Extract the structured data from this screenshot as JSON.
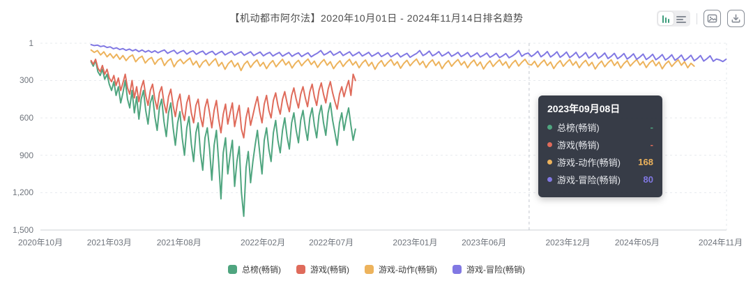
{
  "tooltip": {
    "date": "2023年09月08日",
    "day": 1072,
    "rows": [
      {
        "label": "总榜(畅销)",
        "value": "-",
        "color": "#4fa57f"
      },
      {
        "label": "游戏(畅销)",
        "value": "-",
        "color": "#df6b5b"
      },
      {
        "label": "游戏-动作(畅销)",
        "value": "168",
        "color": "#edb35c"
      },
      {
        "label": "游戏-冒险(畅销)",
        "value": "80",
        "color": "#8178e3"
      }
    ]
  },
  "toolbar": {
    "icons": [
      "bar-chart-toggle-icon",
      "list-view-toggle-icon",
      "export-image-icon",
      "download-icon"
    ],
    "accent_color": "#3e9e7c",
    "icon_color": "#878d96"
  },
  "chart_data": {
    "type": "line",
    "title": "【机动都市阿尔法】2020年10月01日 - 2024年11月14日排名趋势",
    "legend_position": "bottom",
    "grid": "horizontal-dashed",
    "x_axis": {
      "start": "2020年10月01日",
      "end": "2024年11月14日",
      "total_days": 1505,
      "ticks": [
        {
          "label": "2020年10月",
          "day": 0
        },
        {
          "label": "2021年03月",
          "day": 151
        },
        {
          "label": "2021年08月",
          "day": 304
        },
        {
          "label": "2022年02月",
          "day": 488
        },
        {
          "label": "2022年07月",
          "day": 638
        },
        {
          "label": "2023年01月",
          "day": 822
        },
        {
          "label": "2023年06月",
          "day": 973
        },
        {
          "label": "2023年12月",
          "day": 1157
        },
        {
          "label": "2024年05月",
          "day": 1309
        },
        {
          "label": "2024年11月",
          "day": 1492
        }
      ]
    },
    "y_axis": {
      "inverted": true,
      "min": 1,
      "max": 1500,
      "ticks": [
        "1",
        "300",
        "600",
        "900",
        "1,200",
        "1,500"
      ],
      "tick_values": [
        1,
        300,
        600,
        900,
        1200,
        1500
      ]
    },
    "series": [
      {
        "key": "overall-bestseller",
        "name": "总榜(畅销)",
        "color": "#4fa57f",
        "start_day": 111,
        "step_days": 5,
        "values": [
          150,
          185,
          140,
          230,
          260,
          210,
          290,
          250,
          330,
          380,
          310,
          420,
          350,
          480,
          400,
          300,
          450,
          520,
          380,
          560,
          430,
          610,
          450,
          380,
          540,
          650,
          480,
          420,
          590,
          700,
          520,
          450,
          630,
          750,
          560,
          480,
          680,
          820,
          640,
          550,
          760,
          900,
          680,
          590,
          810,
          950,
          720,
          640,
          880,
          1020,
          760,
          680,
          850,
          1100,
          820,
          700,
          950,
          1250,
          880,
          760,
          1050,
          900,
          780,
          1150,
          950,
          830,
          1200,
          1390,
          1000,
          870,
          1120,
          950,
          820,
          700,
          880,
          1050,
          780,
          680,
          850,
          950,
          720,
          620,
          780,
          880,
          700,
          600,
          750,
          850,
          640,
          560,
          700,
          800,
          620,
          540,
          680,
          780,
          600,
          520,
          660,
          760,
          580,
          500,
          640,
          740,
          560,
          480,
          620,
          720,
          820,
          640,
          560,
          700,
          600,
          520,
          660,
          780,
          690
        ]
      },
      {
        "key": "games-bestseller",
        "name": "游戏(畅销)",
        "color": "#df6b5b",
        "start_day": 111,
        "step_days": 5,
        "values": [
          140,
          170,
          130,
          200,
          230,
          180,
          250,
          210,
          280,
          310,
          260,
          340,
          280,
          380,
          320,
          250,
          360,
          410,
          300,
          440,
          350,
          470,
          360,
          300,
          420,
          500,
          380,
          330,
          450,
          530,
          400,
          350,
          480,
          560,
          430,
          370,
          500,
          590,
          470,
          410,
          550,
          620,
          480,
          420,
          560,
          640,
          500,
          450,
          590,
          670,
          520,
          450,
          560,
          680,
          540,
          460,
          610,
          720,
          570,
          490,
          650,
          560,
          480,
          670,
          580,
          500,
          690,
          760,
          600,
          520,
          660,
          580,
          500,
          430,
          550,
          640,
          490,
          420,
          540,
          600,
          460,
          400,
          500,
          570,
          450,
          390,
          480,
          550,
          420,
          360,
          450,
          520,
          410,
          350,
          440,
          510,
          390,
          330,
          430,
          500,
          380,
          320,
          410,
          480,
          370,
          310,
          400,
          470,
          530,
          410,
          350,
          430,
          360,
          300,
          420,
          250,
          300
        ]
      },
      {
        "key": "games-action-bestseller",
        "name": "游戏-动作(畅销)",
        "color": "#edb35c",
        "start_day": 111,
        "step_days": 7,
        "values": [
          55,
          75,
          60,
          95,
          70,
          110,
          85,
          120,
          90,
          130,
          100,
          140,
          110,
          95,
          150,
          120,
          105,
          160,
          130,
          115,
          170,
          135,
          120,
          180,
          145,
          125,
          190,
          150,
          130,
          165,
          140,
          120,
          175,
          145,
          195,
          155,
          135,
          180,
          150,
          125,
          185,
          155,
          210,
          165,
          140,
          190,
          160,
          220,
          170,
          145,
          195,
          160,
          135,
          185,
          155,
          205,
          165,
          140,
          190,
          158,
          130,
          175,
          148,
          200,
          162,
          138,
          182,
          152,
          128,
          172,
          145,
          195,
          158,
          132,
          178,
          150,
          205,
          168,
          142,
          188,
          155,
          130,
          176,
          148,
          198,
          160,
          136,
          184,
          154,
          210,
          165,
          140,
          186,
          156,
          132,
          178,
          150,
          202,
          164,
          138,
          182,
          152,
          128,
          174,
          146,
          196,
          158,
          134,
          180,
          150,
          205,
          166,
          140,
          186,
          156,
          132,
          176,
          148,
          198,
          160,
          136,
          182,
          152,
          208,
          168,
          142,
          188,
          158,
          134,
          178,
          150,
          200,
          162,
          138,
          184,
          154,
          130,
          168,
          176,
          146,
          192,
          160,
          136,
          180,
          152,
          204,
          166,
          140,
          186,
          156,
          132,
          178,
          148,
          198,
          162,
          138,
          182,
          154,
          208,
          170,
          144,
          190,
          158,
          134,
          180,
          150,
          200,
          164,
          140,
          184,
          156,
          132,
          176,
          148,
          196,
          160,
          138,
          182,
          152,
          206,
          168,
          144,
          188,
          158,
          134,
          178,
          150,
          198,
          162,
          185
        ]
      },
      {
        "key": "games-adventure-bestseller",
        "name": "游戏-冒险(畅销)",
        "color": "#8178e3",
        "start_day": 111,
        "step_days": 7,
        "values": [
          12,
          20,
          16,
          28,
          22,
          35,
          30,
          45,
          38,
          52,
          44,
          58,
          48,
          62,
          52,
          68,
          55,
          72,
          60,
          75,
          62,
          78,
          65,
          55,
          82,
          68,
          58,
          85,
          70,
          60,
          88,
          72,
          62,
          90,
          74,
          64,
          92,
          76,
          66,
          94,
          78,
          66,
          95,
          80,
          68,
          96,
          82,
          70,
          98,
          84,
          70,
          100,
          85,
          72,
          102,
          86,
          74,
          104,
          88,
          75,
          105,
          90,
          76,
          106,
          90,
          78,
          108,
          92,
          78,
          110,
          94,
          80,
          60,
          95,
          82,
          65,
          98,
          84,
          68,
          100,
          85,
          70,
          102,
          88,
          72,
          104,
          90,
          74,
          106,
          92,
          76,
          108,
          94,
          78,
          110,
          95,
          80,
          112,
          96,
          82,
          114,
          98,
          84,
          60,
          100,
          86,
          64,
          102,
          88,
          68,
          104,
          90,
          72,
          106,
          92,
          74,
          108,
          94,
          76,
          110,
          96,
          78,
          112,
          98,
          80,
          114,
          100,
          82,
          116,
          102,
          84,
          118,
          104,
          86,
          60,
          106,
          88,
          80,
          108,
          90,
          66,
          110,
          92,
          68,
          112,
          94,
          70,
          114,
          96,
          72,
          116,
          98,
          74,
          118,
          100,
          76,
          120,
          102,
          78,
          122,
          104,
          80,
          124,
          106,
          82,
          126,
          108,
          84,
          128,
          110,
          86,
          130,
          112,
          88,
          132,
          114,
          90,
          134,
          116,
          92,
          136,
          118,
          94,
          138,
          120,
          96,
          140,
          122,
          98,
          142,
          124,
          100,
          144,
          126,
          102,
          146,
          128,
          135,
          148,
          130
        ]
      }
    ]
  }
}
